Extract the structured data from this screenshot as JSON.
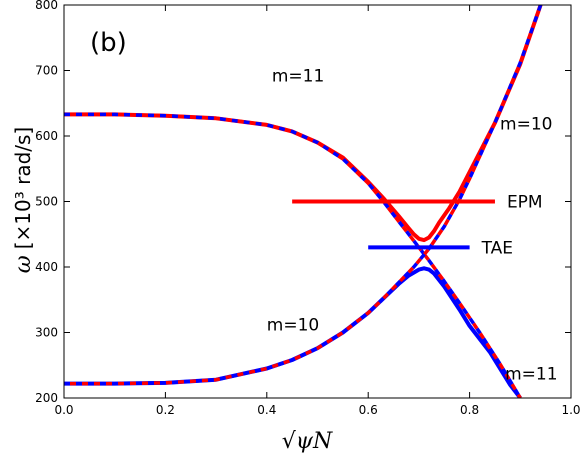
{
  "chart_data": {
    "type": "line",
    "panel_label": "(b)",
    "xlabel": "√ψN",
    "ylabel_symbol": "ω",
    "ylabel_unit": "[×10³  rad/s]",
    "xlim": [
      0.0,
      1.0
    ],
    "ylim": [
      200,
      800
    ],
    "x_ticks": [
      "0.0",
      "0.2",
      "0.4",
      "0.6",
      "0.8",
      "1.0"
    ],
    "y_ticks": [
      "200",
      "300",
      "400",
      "500",
      "600",
      "700",
      "800"
    ],
    "grid": false,
    "colors": {
      "red": "#ff0000",
      "blue": "#0000ff"
    },
    "series": [
      {
        "style": "solid-red",
        "x": [
          0.0,
          0.1,
          0.2,
          0.3,
          0.4,
          0.45,
          0.5,
          0.55,
          0.6,
          0.63,
          0.66,
          0.68,
          0.69,
          0.7,
          0.71,
          0.72,
          0.73,
          0.74,
          0.76,
          0.78,
          0.8,
          0.85,
          0.9,
          0.94
        ],
        "y": [
          633,
          633,
          631,
          627,
          617,
          607,
          590,
          567,
          530,
          505,
          478,
          459,
          450,
          443,
          441,
          445,
          455,
          468,
          490,
          515,
          545,
          620,
          710,
          800
        ]
      },
      {
        "style": "solid-blue",
        "x": [
          0.0,
          0.1,
          0.2,
          0.3,
          0.4,
          0.45,
          0.5,
          0.55,
          0.6,
          0.63,
          0.66,
          0.68,
          0.7,
          0.71,
          0.72,
          0.73,
          0.75,
          0.78,
          0.8,
          0.84,
          0.88,
          0.9
        ],
        "y": [
          222,
          222,
          223,
          228,
          245,
          258,
          276,
          300,
          330,
          352,
          374,
          387,
          396,
          398,
          396,
          390,
          370,
          335,
          310,
          270,
          220,
          200
        ]
      },
      {
        "style": "dash-upper",
        "x": [
          0.0,
          0.1,
          0.2,
          0.3,
          0.4,
          0.45,
          0.5,
          0.55,
          0.6,
          0.63,
          0.66,
          0.69,
          0.72,
          0.75,
          0.78,
          0.82,
          0.86,
          0.88,
          0.9
        ],
        "y": [
          633,
          633,
          631,
          627,
          617,
          607,
          590,
          565,
          528,
          500,
          470,
          440,
          410,
          378,
          345,
          300,
          252,
          226,
          200
        ]
      },
      {
        "style": "dash-lower",
        "x": [
          0.0,
          0.1,
          0.2,
          0.3,
          0.4,
          0.45,
          0.5,
          0.55,
          0.6,
          0.63,
          0.66,
          0.69,
          0.72,
          0.75,
          0.78,
          0.8,
          0.85,
          0.9,
          0.94
        ],
        "y": [
          222,
          222,
          223,
          228,
          245,
          258,
          276,
          300,
          330,
          352,
          376,
          400,
          428,
          462,
          503,
          535,
          620,
          712,
          800
        ]
      }
    ],
    "hlines": [
      {
        "label": "EPM",
        "y": 500,
        "x": [
          0.45,
          0.85
        ],
        "color": "#ff0000"
      },
      {
        "label": "TAE",
        "y": 430,
        "x": [
          0.6,
          0.8
        ],
        "color": "#0000ff"
      }
    ],
    "annotations": [
      {
        "text": "m=11",
        "x": 0.41,
        "y": 683
      },
      {
        "text": "m=10",
        "x": 0.86,
        "y": 610
      },
      {
        "text": "m=10",
        "x": 0.4,
        "y": 303
      },
      {
        "text": "m=11",
        "x": 0.87,
        "y": 228
      }
    ]
  }
}
